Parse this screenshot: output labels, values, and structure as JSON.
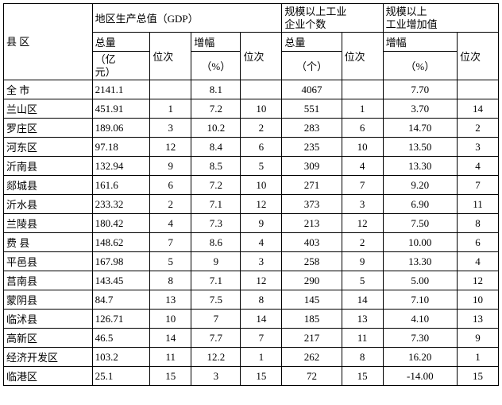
{
  "headers": {
    "region": "县 区",
    "gdp_group": "地区生产总值（GDP）",
    "enterprises_group_l1": "规模以上工业",
    "enterprises_group_l2": "企业个数",
    "value_added_group_l1": "规模以上",
    "value_added_group_l2": "工业增加值",
    "total": "总量",
    "rank": "位次",
    "growth": "增幅",
    "unit_yi_l1": "（亿",
    "unit_yi_l2": "元）",
    "unit_pct": "（%）",
    "unit_count": "（个）"
  },
  "rows": [
    {
      "region": "全 市",
      "gdp_total": "2141.1",
      "gdp_rank": "",
      "gdp_growth": "8.1",
      "gdp_growth_rank": "",
      "ent_total": "4067",
      "ent_rank": "",
      "va_growth": "7.70",
      "va_rank": ""
    },
    {
      "region": "兰山区",
      "gdp_total": "451.91",
      "gdp_rank": "1",
      "gdp_growth": "7.2",
      "gdp_growth_rank": "10",
      "ent_total": "551",
      "ent_rank": "1",
      "va_growth": "3.70",
      "va_rank": "14"
    },
    {
      "region": "罗庄区",
      "gdp_total": "189.06",
      "gdp_rank": "3",
      "gdp_growth": "10.2",
      "gdp_growth_rank": "2",
      "ent_total": "283",
      "ent_rank": "6",
      "va_growth": "14.70",
      "va_rank": "2"
    },
    {
      "region": "河东区",
      "gdp_total": "97.18",
      "gdp_rank": "12",
      "gdp_growth": "8.4",
      "gdp_growth_rank": "6",
      "ent_total": "235",
      "ent_rank": "10",
      "va_growth": "13.50",
      "va_rank": "3"
    },
    {
      "region": "沂南县",
      "gdp_total": "132.94",
      "gdp_rank": "9",
      "gdp_growth": "8.5",
      "gdp_growth_rank": "5",
      "ent_total": "309",
      "ent_rank": "4",
      "va_growth": "13.30",
      "va_rank": "4"
    },
    {
      "region": "郯城县",
      "gdp_total": "161.6",
      "gdp_rank": "6",
      "gdp_growth": "7.2",
      "gdp_growth_rank": "10",
      "ent_total": "271",
      "ent_rank": "7",
      "va_growth": "9.20",
      "va_rank": "7"
    },
    {
      "region": "沂水县",
      "gdp_total": "233.32",
      "gdp_rank": "2",
      "gdp_growth": "7.1",
      "gdp_growth_rank": "12",
      "ent_total": "373",
      "ent_rank": "3",
      "va_growth": "6.90",
      "va_rank": "11"
    },
    {
      "region": "兰陵县",
      "gdp_total": "180.42",
      "gdp_rank": "4",
      "gdp_growth": "7.3",
      "gdp_growth_rank": "9",
      "ent_total": "213",
      "ent_rank": "12",
      "va_growth": "7.50",
      "va_rank": "8"
    },
    {
      "region": "费 县",
      "gdp_total": "148.62",
      "gdp_rank": "7",
      "gdp_growth": "8.6",
      "gdp_growth_rank": "4",
      "ent_total": "403",
      "ent_rank": "2",
      "va_growth": "10.00",
      "va_rank": "6"
    },
    {
      "region": "平邑县",
      "gdp_total": "167.98",
      "gdp_rank": "5",
      "gdp_growth": "9",
      "gdp_growth_rank": "3",
      "ent_total": "258",
      "ent_rank": "9",
      "va_growth": "13.30",
      "va_rank": "4"
    },
    {
      "region": "莒南县",
      "gdp_total": "143.45",
      "gdp_rank": "8",
      "gdp_growth": "7.1",
      "gdp_growth_rank": "12",
      "ent_total": "290",
      "ent_rank": "5",
      "va_growth": "5.00",
      "va_rank": "12"
    },
    {
      "region": "蒙阴县",
      "gdp_total": "84.7",
      "gdp_rank": "13",
      "gdp_growth": "7.5",
      "gdp_growth_rank": "8",
      "ent_total": "145",
      "ent_rank": "14",
      "va_growth": "7.10",
      "va_rank": "10"
    },
    {
      "region": "临沭县",
      "gdp_total": "126.71",
      "gdp_rank": "10",
      "gdp_growth": "7",
      "gdp_growth_rank": "14",
      "ent_total": "185",
      "ent_rank": "13",
      "va_growth": "4.10",
      "va_rank": "13"
    },
    {
      "region": "高新区",
      "gdp_total": "46.5",
      "gdp_rank": "14",
      "gdp_growth": "7.7",
      "gdp_growth_rank": "7",
      "ent_total": "217",
      "ent_rank": "11",
      "va_growth": "7.30",
      "va_rank": "9"
    },
    {
      "region": "经济开发区",
      "gdp_total": "103.2",
      "gdp_rank": "11",
      "gdp_growth": "12.2",
      "gdp_growth_rank": "1",
      "ent_total": "262",
      "ent_rank": "8",
      "va_growth": "16.20",
      "va_rank": "1"
    },
    {
      "region": "临港区",
      "gdp_total": "25.1",
      "gdp_rank": "15",
      "gdp_growth": "3",
      "gdp_growth_rank": "15",
      "ent_total": "72",
      "ent_rank": "15",
      "va_growth": "-14.00",
      "va_rank": "15"
    }
  ],
  "style": {
    "border_color": "#000000",
    "background_color": "#ffffff",
    "font_family": "SimSun",
    "header_fontsize": 13,
    "cell_fontsize": 13
  }
}
